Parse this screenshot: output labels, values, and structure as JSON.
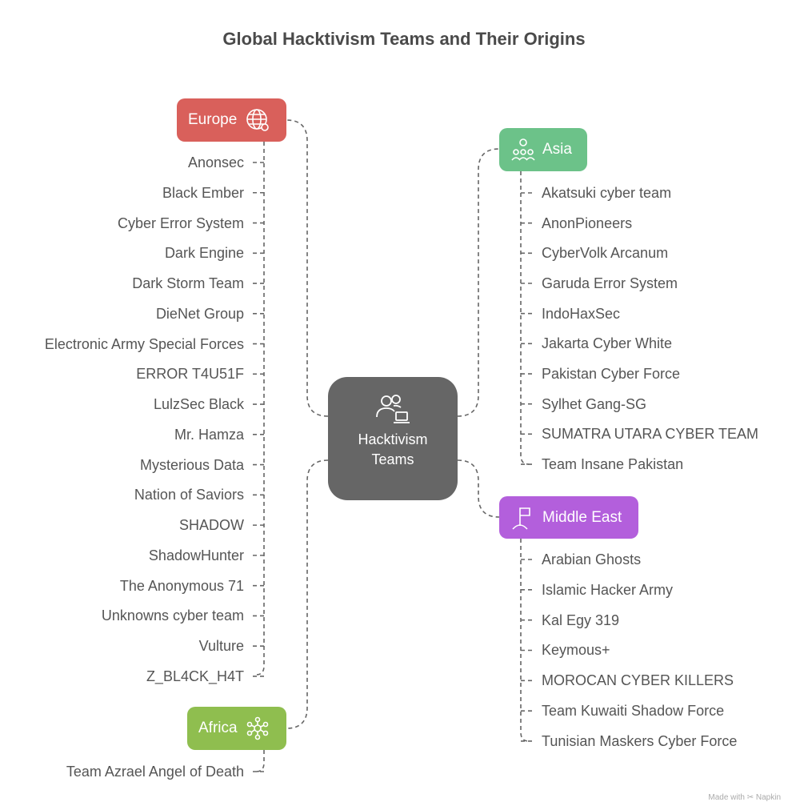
{
  "title": "Global Hacktivism Teams and Their Origins",
  "center": {
    "line1": "Hacktivism",
    "line2": "Teams",
    "icon": "users-laptop-icon"
  },
  "colors": {
    "europe": "#d9605b",
    "asia": "#6cc289",
    "middle_east": "#b35fdc",
    "africa": "#8fbe4f",
    "center": "#666666"
  },
  "regions": {
    "europe": {
      "label": "Europe",
      "icon": "globe-icon",
      "items": [
        "Anonsec",
        "Black Ember",
        "Cyber Error System",
        "Dark Engine",
        "Dark Storm Team",
        "DieNet Group",
        "Electronic Army Special Forces",
        "ERROR T4U51F",
        "LulzSec Black",
        "Mr. Hamza",
        "Mysterious Data",
        "Nation of Saviors",
        "SHADOW",
        "ShadowHunter",
        "The Anonymous 71",
        "Unknowns cyber team",
        "Vulture",
        "Z_BL4CK_H4T"
      ]
    },
    "asia": {
      "label": "Asia",
      "icon": "people-group-icon",
      "items": [
        "Akatsuki cyber team",
        "AnonPioneers",
        "CyberVolk Arcanum",
        "Garuda Error System",
        "IndoHaxSec",
        "Jakarta Cyber White",
        "Pakistan Cyber Force",
        "Sylhet Gang-SG",
        "SUMATRA UTARA CYBER TEAM",
        "Team Insane Pakistan"
      ]
    },
    "middle_east": {
      "label": "Middle East",
      "icon": "flag-icon",
      "items": [
        "Arabian Ghosts",
        "Islamic Hacker Army",
        "Kal Egy 319",
        "Keymous+",
        "MOROCAN CYBER KILLERS",
        "Team Kuwaiti Shadow Force",
        "Tunisian Maskers Cyber Force"
      ]
    },
    "africa": {
      "label": "Africa",
      "icon": "network-icon",
      "items": [
        "Team Azrael Angel of Death"
      ]
    }
  },
  "watermark": "Made with ✂ Napkin"
}
